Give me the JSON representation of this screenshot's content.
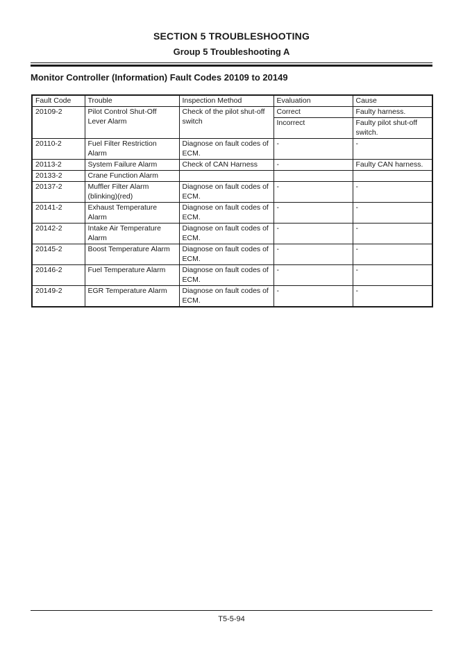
{
  "header": {
    "section_title": "SECTION 5 TROUBLESHOOTING",
    "group_title": "Group 5 Troubleshooting A",
    "heading": "Monitor Controller (Information) Fault Codes 20109 to 20149"
  },
  "table": {
    "headers": [
      "Fault Code",
      "Trouble",
      "Inspection Method",
      "Evaluation",
      "Cause"
    ],
    "rows": [
      {
        "fault_code": "20109-2",
        "trouble": "Pilot Control Shut-Off Lever Alarm",
        "inspection_method": "Check of the pilot shut-off switch",
        "evaluations": [
          {
            "evaluation": "Correct",
            "cause": "Faulty harness."
          },
          {
            "evaluation": "Incorrect",
            "cause": "Faulty pilot shut-off switch."
          }
        ]
      },
      {
        "fault_code": "20110-2",
        "trouble": "Fuel Filter Restriction Alarm",
        "inspection_method": "Diagnose on fault codes of ECM.",
        "evaluations": [
          {
            "evaluation": "-",
            "cause": "-"
          }
        ]
      },
      {
        "fault_code": "20113-2",
        "trouble": "System Failure Alarm",
        "inspection_method": "Check of CAN Harness",
        "evaluations": [
          {
            "evaluation": "-",
            "cause": "Faulty CAN harness."
          }
        ]
      },
      {
        "fault_code": "20133-2",
        "trouble": "Crane Function Alarm",
        "inspection_method": "",
        "evaluations": [
          {
            "evaluation": "",
            "cause": ""
          }
        ]
      },
      {
        "fault_code": "20137-2",
        "trouble": "Muffler Filter Alarm (blinking)(red)",
        "inspection_method": "Diagnose on fault codes of ECM.",
        "evaluations": [
          {
            "evaluation": "-",
            "cause": "-"
          }
        ]
      },
      {
        "fault_code": "20141-2",
        "trouble": "Exhaust Temperature Alarm",
        "inspection_method": "Diagnose on fault codes of ECM.",
        "evaluations": [
          {
            "evaluation": "-",
            "cause": "-"
          }
        ]
      },
      {
        "fault_code": "20142-2",
        "trouble": "Intake Air Temperature Alarm",
        "inspection_method": "Diagnose on fault codes of ECM.",
        "evaluations": [
          {
            "evaluation": "-",
            "cause": "-"
          }
        ]
      },
      {
        "fault_code": "20145-2",
        "trouble": "Boost Temperature Alarm",
        "inspection_method": "Diagnose on fault codes of ECM.",
        "evaluations": [
          {
            "evaluation": "-",
            "cause": "-"
          }
        ]
      },
      {
        "fault_code": "20146-2",
        "trouble": "Fuel Temperature Alarm",
        "inspection_method": "Diagnose on fault codes of ECM.",
        "evaluations": [
          {
            "evaluation": "-",
            "cause": "-"
          }
        ]
      },
      {
        "fault_code": "20149-2",
        "trouble": "EGR Temperature Alarm",
        "inspection_method": "Diagnose on fault codes of ECM.",
        "evaluations": [
          {
            "evaluation": "-",
            "cause": "-"
          }
        ]
      }
    ]
  },
  "footer": {
    "page_number": "T5-5-94"
  }
}
